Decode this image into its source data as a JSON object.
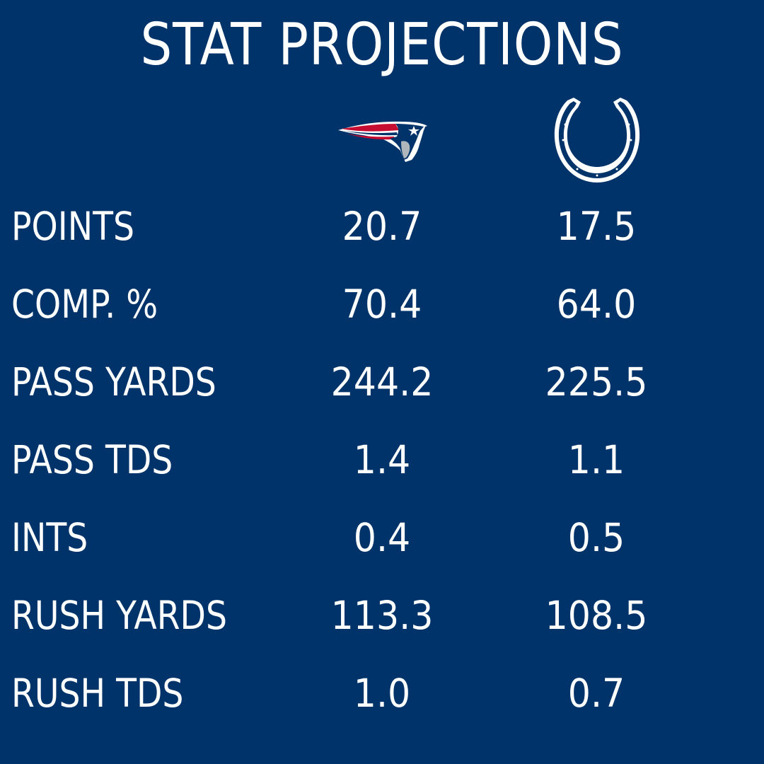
{
  "title": "STAT PROJECTIONS",
  "teams": [
    {
      "icon": "patriots-logo-icon",
      "color": "#C60C30"
    },
    {
      "icon": "colts-horseshoe-icon",
      "color": "#003369"
    }
  ],
  "colors": {
    "background": "#003369",
    "text": "#FFFFFF",
    "patriots_red": "#C60C30",
    "patriots_silver": "#B0B7BC"
  },
  "rows": [
    {
      "label": "POINTS",
      "patriots": "20.7",
      "colts": "17.5"
    },
    {
      "label": "COMP. %",
      "patriots": "70.4",
      "colts": "64.0"
    },
    {
      "label": "PASS YARDS",
      "patriots": "244.2",
      "colts": "225.5"
    },
    {
      "label": "PASS TDS",
      "patriots": "1.4",
      "colts": "1.1"
    },
    {
      "label": "INTS",
      "patriots": "0.4",
      "colts": "0.5"
    },
    {
      "label": "RUSH YARDS",
      "patriots": "113.3",
      "colts": "108.5"
    },
    {
      "label": "RUSH TDS",
      "patriots": "1.0",
      "colts": "0.7"
    }
  ]
}
